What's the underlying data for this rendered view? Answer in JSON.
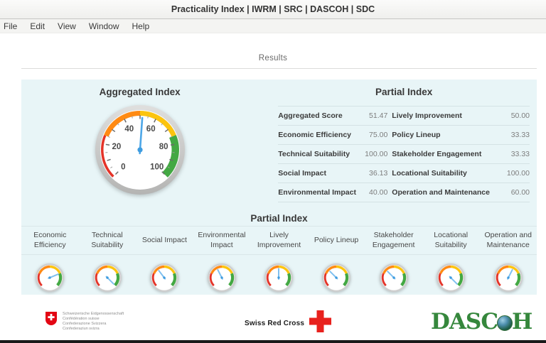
{
  "window": {
    "title": "Practicality Index | IWRM | SRC | DASCOH | SDC"
  },
  "menu": {
    "items": [
      "File",
      "Edit",
      "View",
      "Window",
      "Help"
    ]
  },
  "tabs": {
    "results": "Results"
  },
  "colors": {
    "panel_bg": "#e8f5f7",
    "band_red": "#e43328",
    "band_orange": "#ff8a13",
    "band_yellow": "#fcc40f",
    "band_green": "#43a843",
    "needle": "#4da7e8",
    "needle_small": "#7fc0ef",
    "hub": "#3f9cdf"
  },
  "aggregated": {
    "title": "Aggregated Index",
    "value": 51.47,
    "min": 0,
    "max": 100,
    "tick_step_minor": 5,
    "tick_step_major": 10,
    "tick_labels": [
      0,
      20,
      40,
      60,
      80,
      100
    ]
  },
  "partial_table": {
    "title": "Partial Index",
    "rows": [
      [
        "Aggregated Score",
        "51.47",
        "Lively Improvement",
        "50.00"
      ],
      [
        "Economic Efficiency",
        "75.00",
        "Policy Lineup",
        "33.33"
      ],
      [
        "Technical Suitability",
        "100.00",
        "Stakeholder Engagement",
        "33.33"
      ],
      [
        "Social Impact",
        "36.13",
        "Locational Suitability",
        "100.00"
      ],
      [
        "Environmental Impact",
        "40.00",
        "Operation and Maintenance",
        "60.00"
      ]
    ]
  },
  "partial_gauges": {
    "title": "Partial Index",
    "items": [
      {
        "label": "Economic Efficiency",
        "value": 75.0
      },
      {
        "label": "Technical Suitability",
        "value": 100.0
      },
      {
        "label": "Social Impact",
        "value": 36.13
      },
      {
        "label": "Environmental Impact",
        "value": 40.0
      },
      {
        "label": "Lively Improvement",
        "value": 50.0
      },
      {
        "label": "Policy Lineup",
        "value": 33.33
      },
      {
        "label": "Stakeholder Engagement",
        "value": 33.33
      },
      {
        "label": "Locational Suitability",
        "value": 100.0
      },
      {
        "label": "Operation and Maintenance",
        "value": 60.0
      }
    ]
  },
  "footer": {
    "swiss": {
      "lines": [
        "Schweizerische Eidgenossenschaft",
        "Confédération suisse",
        "Confederazione Svizzera",
        "Confederaziun svizra"
      ]
    },
    "src": {
      "label": "Swiss Red Cross"
    },
    "dascoh": {
      "part1": "DAS",
      "part2": "C",
      "part3": "H"
    }
  }
}
